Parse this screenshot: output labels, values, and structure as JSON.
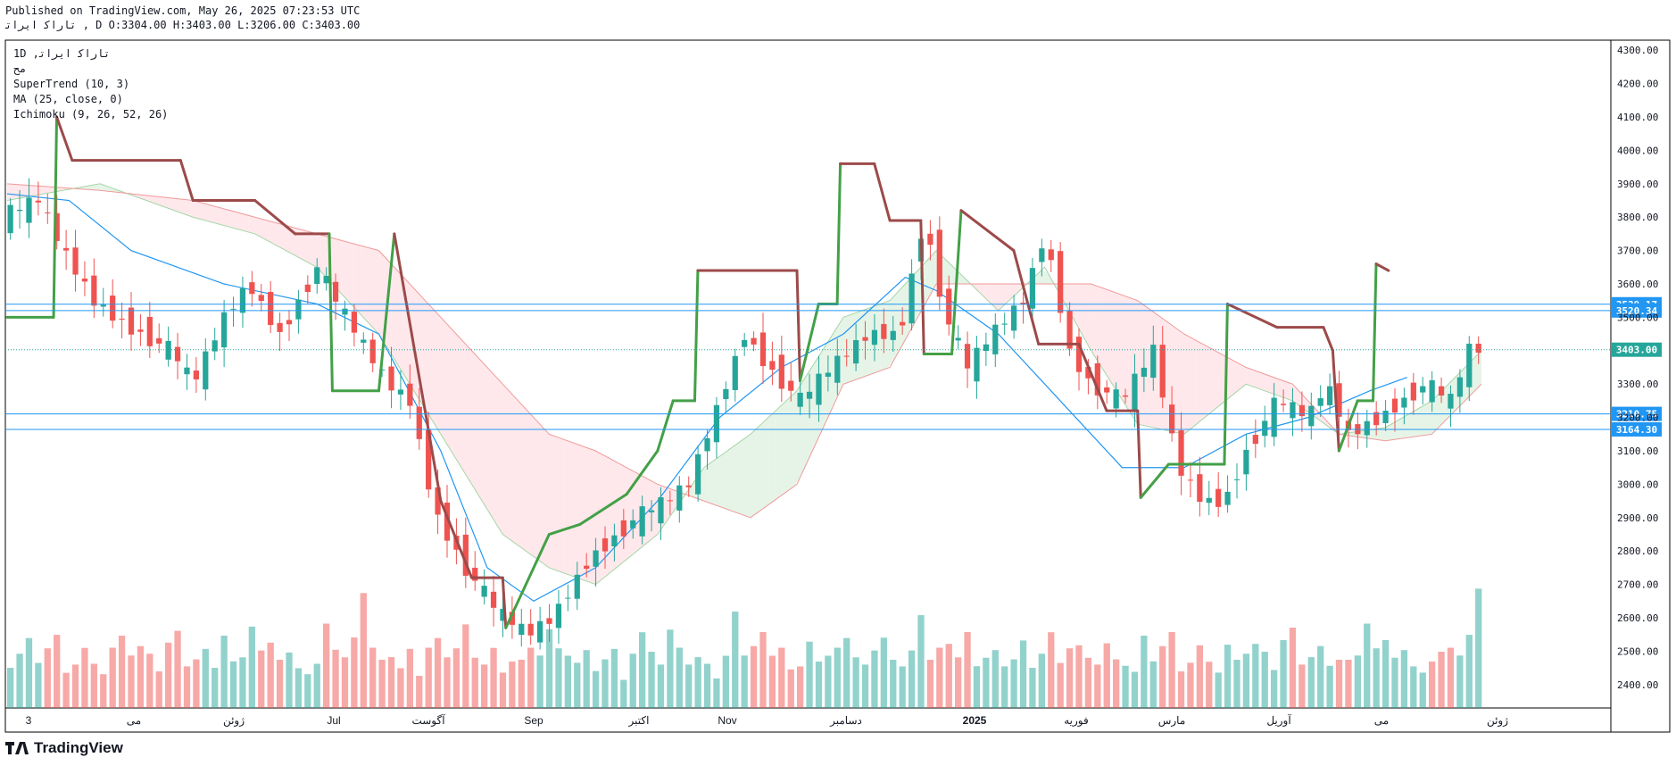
{
  "header": {
    "published": "Published on TradingView.com, May 26, 2025 07:23:53 UTC",
    "ohlc_line": "ﺗﺎﺭﺍﮐ ﺍﻳﺮﺍﺗ , D O:3304.00 H:3403.00 L:3206.00 C:3403.00"
  },
  "legend": {
    "symbol": "1D ,ﺗﺎﺭﺍﮐ ﺍﻳﺮﺍﺗ",
    "line2": "ﻣﺢ",
    "supertrend": "SuperTrend (10, 3)",
    "ma": "MA (25, close, 0)",
    "ichimoku": "Ichimoku (9, 26, 52, 26)"
  },
  "footer": {
    "brand": "TradingView"
  },
  "colors": {
    "up": "#26a69a",
    "down": "#ef5350",
    "st_up": "#43a047",
    "st_down": "#9c4a4a",
    "ma": "#2196f3",
    "hline": "#2196f3",
    "cloud_up": "#c8e6c9",
    "cloud_down": "#ffcdd2"
  },
  "chart_data": {
    "type": "candlestick",
    "x_tick_labels": [
      "3",
      "می",
      "ژوئن",
      "Jul",
      "آگوست",
      "Sep",
      "اکتبر",
      "Nov",
      "دسامبر",
      "2025",
      "فوریه",
      "مارس",
      "آوریل",
      "می",
      "ژوئن"
    ],
    "y_tick_labels": [
      "4300.00",
      "4200.00",
      "4100.00",
      "4000.00",
      "3900.00",
      "3800.00",
      "3700.00",
      "3600.00",
      "3500.00",
      "3300.00",
      "3200.00",
      "3100.00",
      "3000.00",
      "2900.00",
      "2800.00",
      "2700.00",
      "2600.00",
      "2500.00",
      "2400.00"
    ],
    "ylim": [
      2330,
      4330
    ],
    "price_lines": [
      {
        "label": "3539.17",
        "value": 3539.17
      },
      {
        "label": "3520.34",
        "value": 3520.34
      },
      {
        "label": "3210.75",
        "value": 3210.75
      },
      {
        "label": "3164.30",
        "value": 3164.3
      }
    ],
    "last_price": {
      "label": "3403.00",
      "value": 3403.0
    },
    "close_path": [
      [
        0,
        3800
      ],
      [
        12,
        3850
      ],
      [
        20,
        3700
      ],
      [
        30,
        3550
      ],
      [
        40,
        3480
      ],
      [
        55,
        3400
      ],
      [
        62,
        3300
      ],
      [
        72,
        3500
      ],
      [
        80,
        3600
      ],
      [
        90,
        3450
      ],
      [
        102,
        3650
      ],
      [
        108,
        3550
      ],
      [
        118,
        3400
      ],
      [
        125,
        3300
      ],
      [
        132,
        3250
      ],
      [
        140,
        2920
      ],
      [
        150,
        2750
      ],
      [
        160,
        2620
      ],
      [
        170,
        2550
      ],
      [
        178,
        2600
      ],
      [
        190,
        2780
      ],
      [
        205,
        2900
      ],
      [
        215,
        2950
      ],
      [
        222,
        3000
      ],
      [
        232,
        3250
      ],
      [
        240,
        3450
      ],
      [
        248,
        3350
      ],
      [
        258,
        3250
      ],
      [
        268,
        3350
      ],
      [
        280,
        3450
      ],
      [
        290,
        3450
      ],
      [
        298,
        3800
      ],
      [
        305,
        3500
      ],
      [
        312,
        3350
      ],
      [
        320,
        3450
      ],
      [
        330,
        3550
      ],
      [
        337,
        3750
      ],
      [
        345,
        3400
      ],
      [
        352,
        3300
      ],
      [
        362,
        3250
      ],
      [
        372,
        3400
      ],
      [
        380,
        3050
      ],
      [
        388,
        2950
      ],
      [
        395,
        2950
      ],
      [
        402,
        3100
      ],
      [
        412,
        3250
      ],
      [
        422,
        3200
      ],
      [
        428,
        3300
      ],
      [
        435,
        3150
      ],
      [
        445,
        3200
      ],
      [
        452,
        3250
      ],
      [
        460,
        3300
      ],
      [
        468,
        3250
      ],
      [
        474,
        3403
      ]
    ],
    "supertrend": [
      [
        0,
        3500,
        "up"
      ],
      [
        15,
        3500,
        "up"
      ],
      [
        16,
        4100,
        "down"
      ],
      [
        21,
        3970,
        "down"
      ],
      [
        56,
        3970,
        "down"
      ],
      [
        60,
        3850,
        "down"
      ],
      [
        80,
        3850,
        "down"
      ],
      [
        93,
        3750,
        "down"
      ],
      [
        104,
        3750,
        "up"
      ],
      [
        105,
        3280,
        "up"
      ],
      [
        120,
        3280,
        "up"
      ],
      [
        125,
        3750,
        "down"
      ],
      [
        140,
        2950,
        "down"
      ],
      [
        150,
        2720,
        "down"
      ],
      [
        160,
        2720,
        "down"
      ],
      [
        161,
        2570,
        "up"
      ],
      [
        175,
        2850,
        "up"
      ],
      [
        185,
        2880,
        "up"
      ],
      [
        200,
        2970,
        "up"
      ],
      [
        210,
        3100,
        "up"
      ],
      [
        215,
        3250,
        "up"
      ],
      [
        222,
        3250,
        "up"
      ],
      [
        223,
        3640,
        "down"
      ],
      [
        255,
        3640,
        "down"
      ],
      [
        256,
        3310,
        "up"
      ],
      [
        262,
        3540,
        "up"
      ],
      [
        268,
        3540,
        "up"
      ],
      [
        269,
        3960,
        "down"
      ],
      [
        280,
        3960,
        "down"
      ],
      [
        285,
        3790,
        "down"
      ],
      [
        295,
        3790,
        "down"
      ],
      [
        296,
        3390,
        "up"
      ],
      [
        305,
        3390,
        "up"
      ],
      [
        308,
        3820,
        "down"
      ],
      [
        325,
        3700,
        "down"
      ],
      [
        333,
        3420,
        "down"
      ],
      [
        346,
        3420,
        "down"
      ],
      [
        355,
        3220,
        "down"
      ],
      [
        365,
        3220,
        "down"
      ],
      [
        366,
        2960,
        "up"
      ],
      [
        375,
        3060,
        "up"
      ],
      [
        393,
        3060,
        "up"
      ],
      [
        394,
        3540,
        "down"
      ],
      [
        410,
        3470,
        "down"
      ],
      [
        425,
        3470,
        "down"
      ],
      [
        428,
        3400,
        "down"
      ],
      [
        430,
        3100,
        "up"
      ],
      [
        436,
        3250,
        "up"
      ],
      [
        441,
        3250,
        "up"
      ],
      [
        442,
        3660,
        "down"
      ],
      [
        446,
        3640,
        "down"
      ]
    ],
    "ma_path": [
      [
        0,
        3870
      ],
      [
        20,
        3850
      ],
      [
        40,
        3700
      ],
      [
        70,
        3600
      ],
      [
        100,
        3540
      ],
      [
        120,
        3450
      ],
      [
        140,
        3100
      ],
      [
        155,
        2750
      ],
      [
        170,
        2650
      ],
      [
        190,
        2750
      ],
      [
        210,
        2950
      ],
      [
        230,
        3200
      ],
      [
        250,
        3350
      ],
      [
        270,
        3450
      ],
      [
        290,
        3620
      ],
      [
        300,
        3580
      ],
      [
        320,
        3450
      ],
      [
        340,
        3250
      ],
      [
        360,
        3050
      ],
      [
        380,
        3050
      ],
      [
        400,
        3150
      ],
      [
        420,
        3200
      ],
      [
        440,
        3280
      ],
      [
        452,
        3320
      ]
    ],
    "cloud_a": [
      [
        0,
        3850
      ],
      [
        30,
        3900
      ],
      [
        60,
        3800
      ],
      [
        80,
        3750
      ],
      [
        100,
        3650
      ],
      [
        120,
        3450
      ],
      [
        140,
        3150
      ],
      [
        160,
        2850
      ],
      [
        175,
        2750
      ],
      [
        190,
        2700
      ],
      [
        210,
        2850
      ],
      [
        225,
        3050
      ],
      [
        240,
        3150
      ],
      [
        255,
        3280
      ],
      [
        270,
        3500
      ],
      [
        285,
        3550
      ],
      [
        300,
        3700
      ],
      [
        320,
        3520
      ],
      [
        335,
        3650
      ],
      [
        350,
        3400
      ],
      [
        365,
        3180
      ],
      [
        380,
        3150
      ],
      [
        400,
        3300
      ],
      [
        415,
        3250
      ],
      [
        430,
        3150
      ],
      [
        445,
        3170
      ],
      [
        460,
        3250
      ],
      [
        476,
        3400
      ]
    ],
    "cloud_b": [
      [
        0,
        3900
      ],
      [
        30,
        3880
      ],
      [
        60,
        3850
      ],
      [
        80,
        3800
      ],
      [
        100,
        3750
      ],
      [
        120,
        3700
      ],
      [
        140,
        3500
      ],
      [
        160,
        3300
      ],
      [
        175,
        3150
      ],
      [
        190,
        3100
      ],
      [
        210,
        3000
      ],
      [
        225,
        2950
      ],
      [
        240,
        2900
      ],
      [
        255,
        3000
      ],
      [
        270,
        3300
      ],
      [
        285,
        3350
      ],
      [
        300,
        3600
      ],
      [
        320,
        3600
      ],
      [
        335,
        3600
      ],
      [
        350,
        3600
      ],
      [
        365,
        3550
      ],
      [
        380,
        3450
      ],
      [
        400,
        3350
      ],
      [
        415,
        3300
      ],
      [
        430,
        3150
      ],
      [
        445,
        3130
      ],
      [
        460,
        3150
      ],
      [
        476,
        3300
      ]
    ],
    "volumes": [
      10,
      9,
      12,
      8,
      11,
      14,
      7,
      9,
      13,
      10,
      8,
      15,
      12,
      9,
      11,
      10,
      7,
      13,
      16,
      9,
      11,
      14,
      10,
      12,
      8,
      9,
      15,
      11,
      13,
      10,
      12,
      9,
      8,
      11,
      14,
      10,
      9,
      13,
      22,
      12,
      10,
      11,
      9,
      14,
      8,
      10,
      12,
      9,
      11,
      16,
      10,
      9,
      13,
      8,
      11,
      12,
      10,
      9,
      14,
      11
    ]
  }
}
